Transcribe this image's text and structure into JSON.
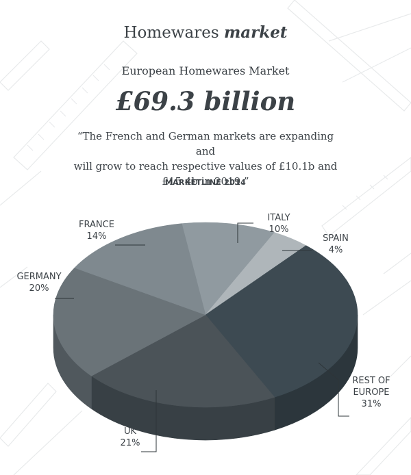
{
  "header": {
    "title_regular": "Homewares",
    "title_bold": "market"
  },
  "summary": {
    "subtitle": "European Homewares Market",
    "total": "£69.3 billion",
    "quote_line1": "“The French and German markets are expanding and",
    "quote_line2": "will grow to reach respective values of £10.1b and",
    "quote_line3": "£15.4b in 2019.”",
    "source": "MARKETLINE 2014"
  },
  "chart_data": {
    "type": "pie",
    "title": "European Homewares Market",
    "categories": [
      "ITALY",
      "SPAIN",
      "REST OF EUROPE",
      "UK",
      "GERMANY",
      "FRANCE"
    ],
    "values": [
      10,
      4,
      31,
      21,
      20,
      14
    ],
    "unit": "%",
    "labels": [
      {
        "name": "ITALY",
        "pct": "10%"
      },
      {
        "name": "SPAIN",
        "pct": "4%"
      },
      {
        "name": "REST OF",
        "name2": "EUROPE",
        "pct": "31%"
      },
      {
        "name": "UK",
        "pct": "21%"
      },
      {
        "name": "GERMANY",
        "pct": "20%"
      },
      {
        "name": "FRANCE",
        "pct": "14%"
      }
    ],
    "colors": [
      "#909aa0",
      "#afb6ba",
      "#3d4a52",
      "#4b5358",
      "#6a7378",
      "#7f898f"
    ],
    "side_colors": [
      "#6b757a",
      "#868e92",
      "#2c363c",
      "#384045",
      "#50585d",
      "#61696e"
    ],
    "legend": "none",
    "style": "3d"
  }
}
